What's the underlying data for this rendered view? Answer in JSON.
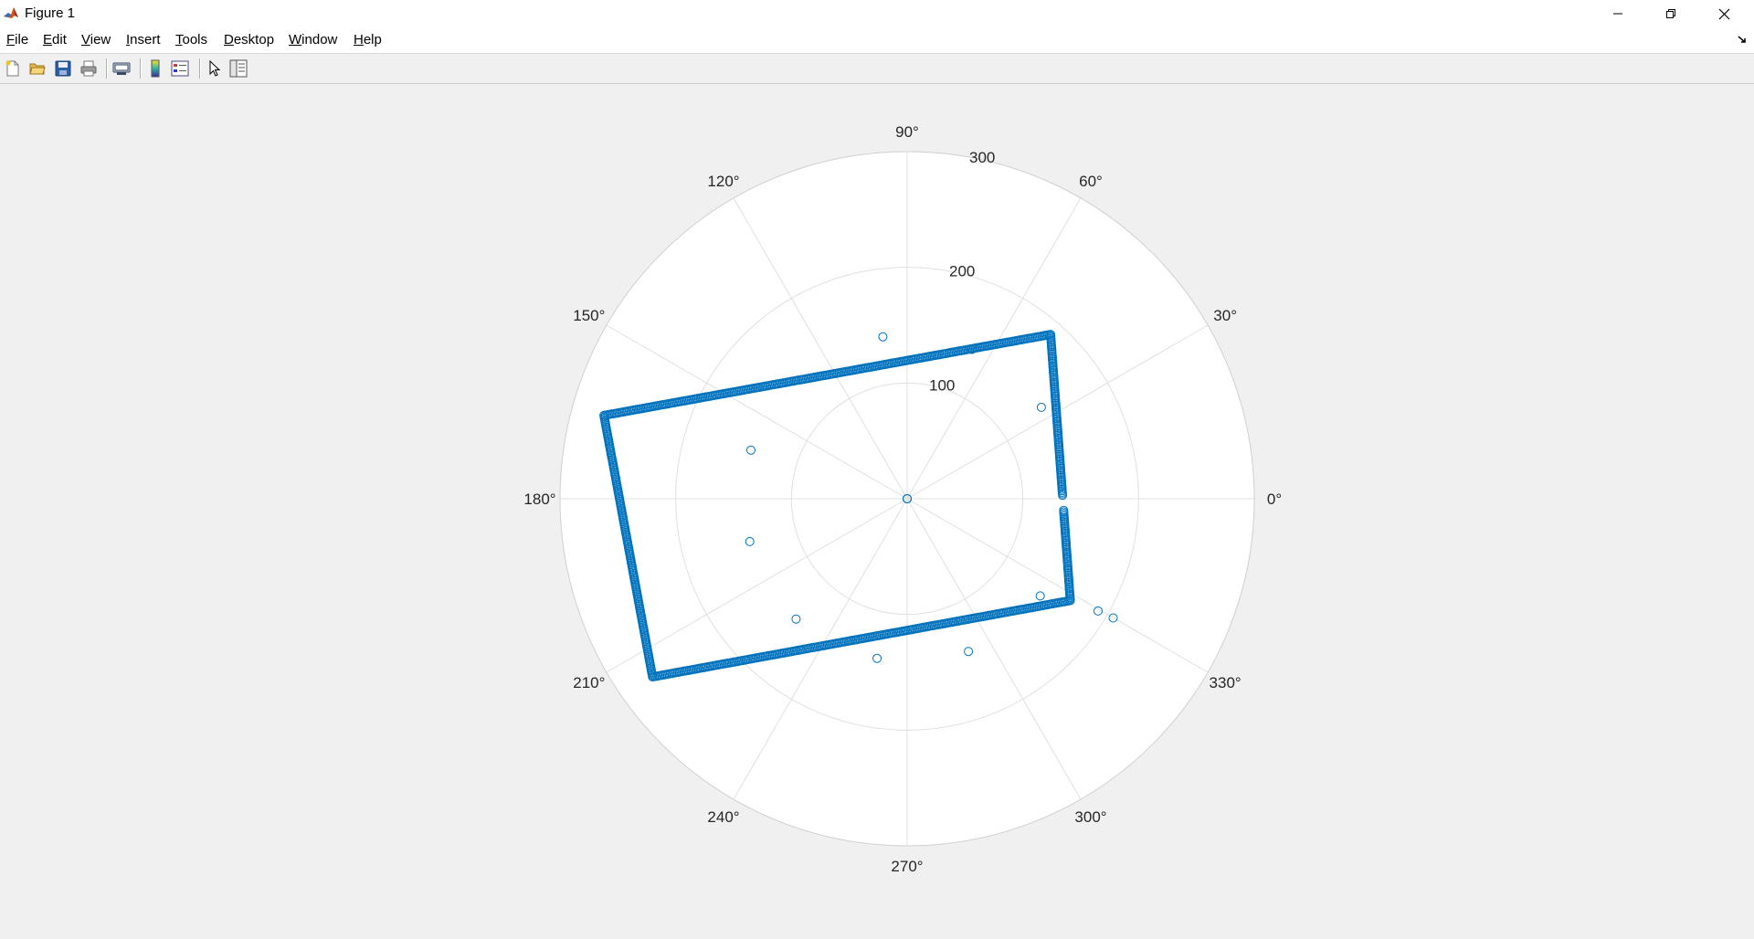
{
  "window": {
    "title": "Figure 1",
    "icon": "matlab-icon"
  },
  "menu": {
    "items": [
      {
        "label": "File",
        "accel": "F"
      },
      {
        "label": "Edit",
        "accel": "E"
      },
      {
        "label": "View",
        "accel": "V"
      },
      {
        "label": "Insert",
        "accel": "I"
      },
      {
        "label": "Tools",
        "accel": "T"
      },
      {
        "label": "Desktop",
        "accel": "D"
      },
      {
        "label": "Window",
        "accel": "W"
      },
      {
        "label": "Help",
        "accel": "H"
      }
    ]
  },
  "toolbar": {
    "buttons": [
      "new-figure-icon",
      "open-file-icon",
      "save-icon",
      "print-icon",
      "link-plot-icon",
      "colorbar-icon",
      "legend-icon",
      "edit-plot-arrow-icon",
      "property-inspector-icon"
    ]
  },
  "chart_data": {
    "type": "scatter",
    "coordinate_system": "polar",
    "marker": "open-circle",
    "color": "#0072BD",
    "grid": true,
    "theta_ticks": [
      {
        "angle": 0,
        "label": "0°"
      },
      {
        "angle": 30,
        "label": "30°"
      },
      {
        "angle": 60,
        "label": "60°"
      },
      {
        "angle": 90,
        "label": "90°"
      },
      {
        "angle": 120,
        "label": "120°"
      },
      {
        "angle": 150,
        "label": "150°"
      },
      {
        "angle": 180,
        "label": "180°"
      },
      {
        "angle": 210,
        "label": "210°"
      },
      {
        "angle": 240,
        "label": "240°"
      },
      {
        "angle": 270,
        "label": "270°"
      },
      {
        "angle": 300,
        "label": "300°"
      },
      {
        "angle": 330,
        "label": "330°"
      }
    ],
    "r_ticks": [
      {
        "value": 0,
        "label": "0"
      },
      {
        "value": 100,
        "label": "100"
      },
      {
        "value": 200,
        "label": "200"
      },
      {
        "value": 300,
        "label": "300"
      }
    ],
    "rlim": [
      0,
      300
    ],
    "rectangle_corners_xy": [
      [
        124,
        142
      ],
      [
        141,
        -88
      ],
      [
        -220,
        -154
      ],
      [
        -262,
        72
      ]
    ],
    "gap_on_right_edge_y": [
      2,
      -10
    ],
    "outliers_xy": [
      [
        -21,
        140
      ],
      [
        56,
        129
      ],
      [
        116,
        79
      ],
      [
        -135,
        42
      ],
      [
        -136,
        -37
      ],
      [
        -96,
        -104
      ],
      [
        -26,
        -138
      ],
      [
        53,
        -132
      ],
      [
        115,
        -84
      ],
      [
        165,
        -97
      ],
      [
        178,
        -103
      ]
    ]
  }
}
